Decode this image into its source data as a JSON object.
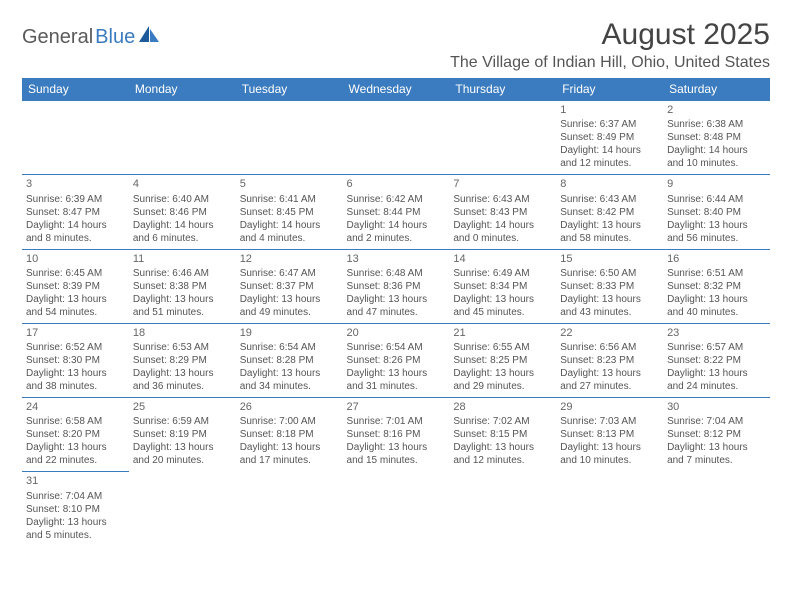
{
  "logo": {
    "part1": "General",
    "part2": "Blue"
  },
  "title": "August 2025",
  "location": "The Village of Indian Hill, Ohio, United States",
  "colors": {
    "header_bg": "#3b7bbf",
    "header_text": "#ffffff",
    "border": "#3b7bbf",
    "body_text": "#555555",
    "title_text": "#444444",
    "logo_gray": "#5a5a5a",
    "logo_blue": "#3b7bbf",
    "background": "#ffffff"
  },
  "day_headers": [
    "Sunday",
    "Monday",
    "Tuesday",
    "Wednesday",
    "Thursday",
    "Friday",
    "Saturday"
  ],
  "weeks": [
    [
      null,
      null,
      null,
      null,
      null,
      {
        "n": "1",
        "sr": "Sunrise: 6:37 AM",
        "ss": "Sunset: 8:49 PM",
        "d1": "Daylight: 14 hours",
        "d2": "and 12 minutes."
      },
      {
        "n": "2",
        "sr": "Sunrise: 6:38 AM",
        "ss": "Sunset: 8:48 PM",
        "d1": "Daylight: 14 hours",
        "d2": "and 10 minutes."
      }
    ],
    [
      {
        "n": "3",
        "sr": "Sunrise: 6:39 AM",
        "ss": "Sunset: 8:47 PM",
        "d1": "Daylight: 14 hours",
        "d2": "and 8 minutes."
      },
      {
        "n": "4",
        "sr": "Sunrise: 6:40 AM",
        "ss": "Sunset: 8:46 PM",
        "d1": "Daylight: 14 hours",
        "d2": "and 6 minutes."
      },
      {
        "n": "5",
        "sr": "Sunrise: 6:41 AM",
        "ss": "Sunset: 8:45 PM",
        "d1": "Daylight: 14 hours",
        "d2": "and 4 minutes."
      },
      {
        "n": "6",
        "sr": "Sunrise: 6:42 AM",
        "ss": "Sunset: 8:44 PM",
        "d1": "Daylight: 14 hours",
        "d2": "and 2 minutes."
      },
      {
        "n": "7",
        "sr": "Sunrise: 6:43 AM",
        "ss": "Sunset: 8:43 PM",
        "d1": "Daylight: 14 hours",
        "d2": "and 0 minutes."
      },
      {
        "n": "8",
        "sr": "Sunrise: 6:43 AM",
        "ss": "Sunset: 8:42 PM",
        "d1": "Daylight: 13 hours",
        "d2": "and 58 minutes."
      },
      {
        "n": "9",
        "sr": "Sunrise: 6:44 AM",
        "ss": "Sunset: 8:40 PM",
        "d1": "Daylight: 13 hours",
        "d2": "and 56 minutes."
      }
    ],
    [
      {
        "n": "10",
        "sr": "Sunrise: 6:45 AM",
        "ss": "Sunset: 8:39 PM",
        "d1": "Daylight: 13 hours",
        "d2": "and 54 minutes."
      },
      {
        "n": "11",
        "sr": "Sunrise: 6:46 AM",
        "ss": "Sunset: 8:38 PM",
        "d1": "Daylight: 13 hours",
        "d2": "and 51 minutes."
      },
      {
        "n": "12",
        "sr": "Sunrise: 6:47 AM",
        "ss": "Sunset: 8:37 PM",
        "d1": "Daylight: 13 hours",
        "d2": "and 49 minutes."
      },
      {
        "n": "13",
        "sr": "Sunrise: 6:48 AM",
        "ss": "Sunset: 8:36 PM",
        "d1": "Daylight: 13 hours",
        "d2": "and 47 minutes."
      },
      {
        "n": "14",
        "sr": "Sunrise: 6:49 AM",
        "ss": "Sunset: 8:34 PM",
        "d1": "Daylight: 13 hours",
        "d2": "and 45 minutes."
      },
      {
        "n": "15",
        "sr": "Sunrise: 6:50 AM",
        "ss": "Sunset: 8:33 PM",
        "d1": "Daylight: 13 hours",
        "d2": "and 43 minutes."
      },
      {
        "n": "16",
        "sr": "Sunrise: 6:51 AM",
        "ss": "Sunset: 8:32 PM",
        "d1": "Daylight: 13 hours",
        "d2": "and 40 minutes."
      }
    ],
    [
      {
        "n": "17",
        "sr": "Sunrise: 6:52 AM",
        "ss": "Sunset: 8:30 PM",
        "d1": "Daylight: 13 hours",
        "d2": "and 38 minutes."
      },
      {
        "n": "18",
        "sr": "Sunrise: 6:53 AM",
        "ss": "Sunset: 8:29 PM",
        "d1": "Daylight: 13 hours",
        "d2": "and 36 minutes."
      },
      {
        "n": "19",
        "sr": "Sunrise: 6:54 AM",
        "ss": "Sunset: 8:28 PM",
        "d1": "Daylight: 13 hours",
        "d2": "and 34 minutes."
      },
      {
        "n": "20",
        "sr": "Sunrise: 6:54 AM",
        "ss": "Sunset: 8:26 PM",
        "d1": "Daylight: 13 hours",
        "d2": "and 31 minutes."
      },
      {
        "n": "21",
        "sr": "Sunrise: 6:55 AM",
        "ss": "Sunset: 8:25 PM",
        "d1": "Daylight: 13 hours",
        "d2": "and 29 minutes."
      },
      {
        "n": "22",
        "sr": "Sunrise: 6:56 AM",
        "ss": "Sunset: 8:23 PM",
        "d1": "Daylight: 13 hours",
        "d2": "and 27 minutes."
      },
      {
        "n": "23",
        "sr": "Sunrise: 6:57 AM",
        "ss": "Sunset: 8:22 PM",
        "d1": "Daylight: 13 hours",
        "d2": "and 24 minutes."
      }
    ],
    [
      {
        "n": "24",
        "sr": "Sunrise: 6:58 AM",
        "ss": "Sunset: 8:20 PM",
        "d1": "Daylight: 13 hours",
        "d2": "and 22 minutes."
      },
      {
        "n": "25",
        "sr": "Sunrise: 6:59 AM",
        "ss": "Sunset: 8:19 PM",
        "d1": "Daylight: 13 hours",
        "d2": "and 20 minutes."
      },
      {
        "n": "26",
        "sr": "Sunrise: 7:00 AM",
        "ss": "Sunset: 8:18 PM",
        "d1": "Daylight: 13 hours",
        "d2": "and 17 minutes."
      },
      {
        "n": "27",
        "sr": "Sunrise: 7:01 AM",
        "ss": "Sunset: 8:16 PM",
        "d1": "Daylight: 13 hours",
        "d2": "and 15 minutes."
      },
      {
        "n": "28",
        "sr": "Sunrise: 7:02 AM",
        "ss": "Sunset: 8:15 PM",
        "d1": "Daylight: 13 hours",
        "d2": "and 12 minutes."
      },
      {
        "n": "29",
        "sr": "Sunrise: 7:03 AM",
        "ss": "Sunset: 8:13 PM",
        "d1": "Daylight: 13 hours",
        "d2": "and 10 minutes."
      },
      {
        "n": "30",
        "sr": "Sunrise: 7:04 AM",
        "ss": "Sunset: 8:12 PM",
        "d1": "Daylight: 13 hours",
        "d2": "and 7 minutes."
      }
    ],
    [
      {
        "n": "31",
        "sr": "Sunrise: 7:04 AM",
        "ss": "Sunset: 8:10 PM",
        "d1": "Daylight: 13 hours",
        "d2": "and 5 minutes."
      },
      null,
      null,
      null,
      null,
      null,
      null
    ]
  ]
}
